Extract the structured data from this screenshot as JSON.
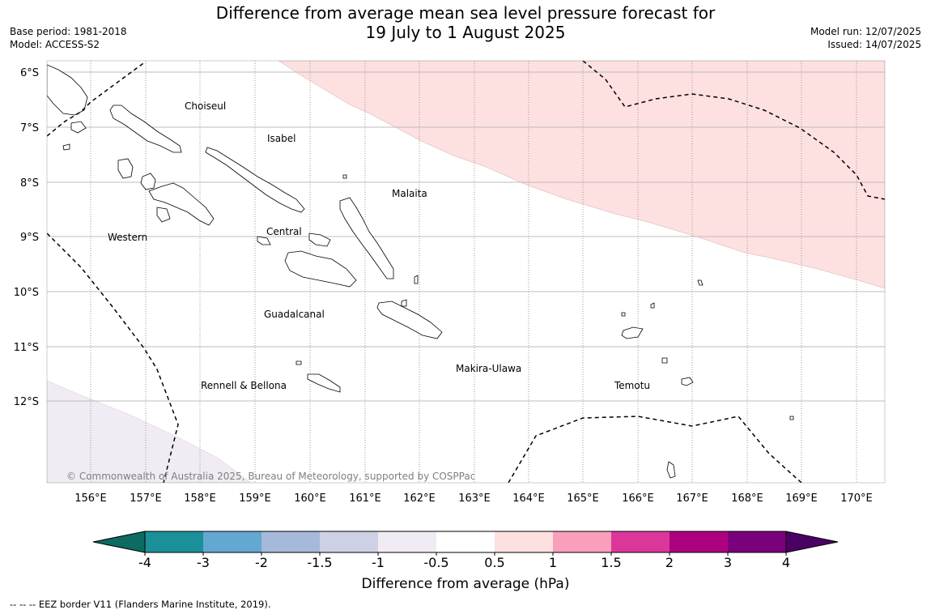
{
  "title_line1": "Difference from average mean sea level pressure forecast for",
  "title_line2": "19 July to 1 August 2025",
  "base_period": "Base period: 1981-2018",
  "model": "Model: ACCESS-S2",
  "model_run": "Model run: 12/07/2025",
  "issued": "Issued: 14/07/2025",
  "map": {
    "lat_labels": [
      "6°S",
      "7°S",
      "8°S",
      "9°S",
      "10°S",
      "11°S",
      "12°S"
    ],
    "lon_labels": [
      "156°E",
      "157°E",
      "158°E",
      "159°E",
      "160°E",
      "161°E",
      "162°E",
      "163°E",
      "164°E",
      "165°E",
      "166°E",
      "167°E",
      "168°E",
      "169°E",
      "170°E"
    ],
    "provinces": [
      "Choiseul",
      "Isabel",
      "Western",
      "Central",
      "Malaita",
      "Guadalcanal",
      "Rennell & Bellona",
      "Makira-Ulawa",
      "Temotu"
    ],
    "copyright": "© Commonwealth of Australia 2025, Bureau of Meteorology, supported by COSPPac",
    "anomaly_colors": {
      "positive_0.5_1": "#fde0e0",
      "negative_-1_-0.5": "#f1ebf3"
    }
  },
  "colorbar": {
    "label": "Difference from average (hPa)",
    "ticks": [
      "-4",
      "-3",
      "-2",
      "-1.5",
      "-1",
      "-0.5",
      "0.5",
      "1",
      "1.5",
      "2",
      "3",
      "4"
    ],
    "colors": [
      "#1b9098",
      "#63a8d0",
      "#a6b9da",
      "#ced0e5",
      "#f1ebf3",
      "#ffffff",
      "#fde0e0",
      "#f99fbc",
      "#db379b",
      "#ad0280",
      "#7b007b"
    ],
    "extend_low": "#0d6b63",
    "extend_high": "#4b0066"
  },
  "footnote": "--  --  -- EEZ border V11 (Flanders Marine Institute, 2019)."
}
